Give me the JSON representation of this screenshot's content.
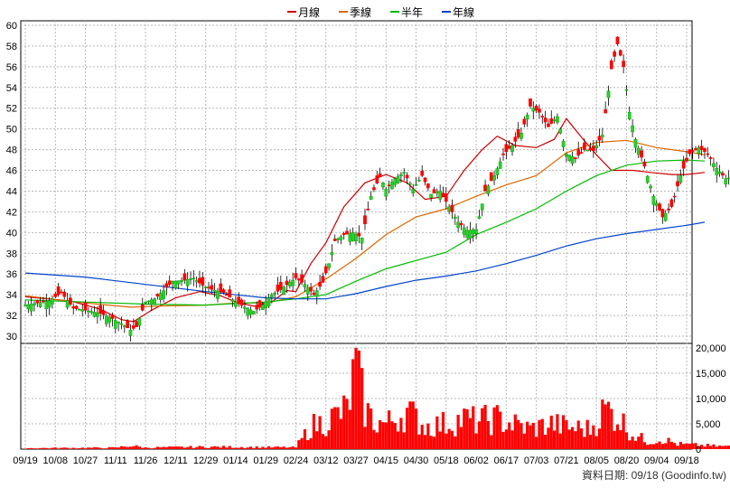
{
  "chart_data": {
    "type": "line",
    "title": "",
    "legend": {
      "placement": "top-center",
      "items": [
        {
          "name": "月線",
          "color": "#cc0000"
        },
        {
          "name": "季線",
          "color": "#dd6600"
        },
        {
          "name": "半年",
          "color": "#00bb00"
        },
        {
          "name": "年線",
          "color": "#0044cc"
        }
      ]
    },
    "grid": true,
    "price_axis": {
      "position": "left",
      "min": 30,
      "max": 60,
      "ticks": [
        30,
        32,
        34,
        36,
        38,
        40,
        42,
        44,
        46,
        48,
        50,
        52,
        54,
        56,
        58,
        60
      ]
    },
    "volume_axis": {
      "position": "right",
      "min": 0,
      "max": 20000,
      "ticks": [
        0,
        5000,
        10000,
        15000,
        20000
      ],
      "tick_labels": [
        "0",
        "5,000",
        "10,000",
        "15,000",
        "20,000"
      ]
    },
    "x_ticks": [
      "09/19",
      "10/08",
      "10/27",
      "11/11",
      "11/26",
      "12/11",
      "12/29",
      "01/14",
      "01/29",
      "02/24",
      "03/12",
      "03/27",
      "04/15",
      "04/30",
      "05/18",
      "06/02",
      "06/17",
      "07/03",
      "07/21",
      "08/05",
      "08/20",
      "09/04",
      "09/18"
    ],
    "series": [
      {
        "name": "月線",
        "color": "#cc0000",
        "values": [
          [
            0,
            33.8
          ],
          [
            1.5,
            33.4
          ],
          [
            2.5,
            32.6
          ],
          [
            3.2,
            31.6
          ],
          [
            3.6,
            31.4
          ],
          [
            4.2,
            32.5
          ],
          [
            5,
            33.7
          ],
          [
            5.8,
            34.3
          ],
          [
            6.5,
            33.9
          ],
          [
            7,
            33.3
          ],
          [
            7.6,
            32.9
          ],
          [
            8.2,
            33.3
          ],
          [
            8.7,
            34.4
          ],
          [
            9,
            34.3
          ],
          [
            9.5,
            37
          ],
          [
            10,
            39
          ],
          [
            10.6,
            42.5
          ],
          [
            11.3,
            44.8
          ],
          [
            12,
            45.6
          ],
          [
            12.7,
            44.8
          ],
          [
            13.3,
            43.2
          ],
          [
            14,
            43.5
          ],
          [
            14.6,
            46
          ],
          [
            15.2,
            48
          ],
          [
            15.7,
            49.3
          ],
          [
            16.3,
            48.4
          ],
          [
            17,
            48.2
          ],
          [
            17.6,
            49
          ],
          [
            18,
            51
          ],
          [
            18.5,
            49.2
          ],
          [
            19,
            47.5
          ],
          [
            19.5,
            46
          ],
          [
            20.2,
            46
          ],
          [
            20.8,
            45.8
          ],
          [
            21.5,
            45.6
          ],
          [
            22,
            45.6
          ],
          [
            22.6,
            45.8
          ]
        ]
      },
      {
        "name": "季線",
        "color": "#dd6600",
        "values": [
          [
            0,
            33.9
          ],
          [
            2,
            33.2
          ],
          [
            3.5,
            32.8
          ],
          [
            4.5,
            32.9
          ],
          [
            6,
            33
          ],
          [
            7,
            33.2
          ],
          [
            8,
            33.2
          ],
          [
            9,
            33.8
          ],
          [
            10,
            35.5
          ],
          [
            11,
            37.5
          ],
          [
            12,
            39.8
          ],
          [
            13,
            41.5
          ],
          [
            14,
            42.3
          ],
          [
            15,
            43.5
          ],
          [
            16,
            44.6
          ],
          [
            17,
            45.5
          ],
          [
            18,
            47.7
          ],
          [
            19,
            48.7
          ],
          [
            20,
            48.9
          ],
          [
            21,
            48.2
          ],
          [
            22,
            47.8
          ],
          [
            22.6,
            47.5
          ]
        ]
      },
      {
        "name": "半年",
        "color": "#00bb00",
        "values": [
          [
            0,
            33.5
          ],
          [
            2,
            33.3
          ],
          [
            4,
            33.1
          ],
          [
            6,
            33
          ],
          [
            8,
            33.3
          ],
          [
            9,
            33.6
          ],
          [
            10,
            34
          ],
          [
            11,
            35.3
          ],
          [
            12,
            36.5
          ],
          [
            13,
            37.3
          ],
          [
            14,
            38.1
          ],
          [
            15,
            39.8
          ],
          [
            16,
            41
          ],
          [
            17,
            42.3
          ],
          [
            18,
            44
          ],
          [
            19,
            45.5
          ],
          [
            20,
            46.5
          ],
          [
            21,
            46.9
          ],
          [
            22,
            47
          ],
          [
            22.6,
            46.9
          ]
        ]
      },
      {
        "name": "年線",
        "color": "#0044cc",
        "values": [
          [
            0,
            36.1
          ],
          [
            2,
            35.7
          ],
          [
            4,
            35
          ],
          [
            6,
            34.3
          ],
          [
            8,
            33.7
          ],
          [
            9,
            33.6
          ],
          [
            10,
            33.6
          ],
          [
            11,
            34.1
          ],
          [
            12,
            34.8
          ],
          [
            13,
            35.4
          ],
          [
            14,
            35.8
          ],
          [
            15,
            36.3
          ],
          [
            16,
            37
          ],
          [
            17,
            37.8
          ],
          [
            18,
            38.7
          ],
          [
            19,
            39.4
          ],
          [
            20,
            39.9
          ],
          [
            21,
            40.3
          ],
          [
            22,
            40.7
          ],
          [
            22.6,
            41
          ]
        ]
      }
    ],
    "candle_anchors": [
      [
        0,
        33
      ],
      [
        0.8,
        33.4
      ],
      [
        1.2,
        34.2
      ],
      [
        1.6,
        32.7
      ],
      [
        2,
        32.5
      ],
      [
        2.5,
        32.2
      ],
      [
        2.9,
        31.7
      ],
      [
        3.2,
        31.2
      ],
      [
        3.5,
        30.6
      ],
      [
        3.7,
        30.9
      ],
      [
        4,
        33.3
      ],
      [
        4.3,
        33.6
      ],
      [
        4.6,
        34.4
      ],
      [
        4.9,
        35.3
      ],
      [
        5.3,
        35.4
      ],
      [
        5.6,
        35.6
      ],
      [
        5.9,
        34.9
      ],
      [
        6.2,
        34.5
      ],
      [
        6.6,
        34.2
      ],
      [
        7,
        33.3
      ],
      [
        7.3,
        32.8
      ],
      [
        7.6,
        32.4
      ],
      [
        7.9,
        33
      ],
      [
        8.2,
        34
      ],
      [
        8.5,
        34.5
      ],
      [
        8.8,
        35.2
      ],
      [
        9,
        35.6
      ],
      [
        9.3,
        35
      ],
      [
        9.6,
        34
      ],
      [
        9.9,
        35.2
      ],
      [
        10.1,
        37
      ],
      [
        10.3,
        39.2
      ],
      [
        10.6,
        39.8
      ],
      [
        10.9,
        40
      ],
      [
        11.2,
        39.5
      ],
      [
        11.5,
        43.5
      ],
      [
        11.8,
        45.4
      ],
      [
        12,
        44.2
      ],
      [
        12.3,
        45.2
      ],
      [
        12.6,
        45.8
      ],
      [
        12.9,
        44.2
      ],
      [
        13.2,
        45.5
      ],
      [
        13.5,
        43.7
      ],
      [
        13.8,
        44
      ],
      [
        14.1,
        42.5
      ],
      [
        14.4,
        41
      ],
      [
        14.7,
        40.2
      ],
      [
        15,
        40.3
      ],
      [
        15.3,
        44
      ],
      [
        15.6,
        45.5
      ],
      [
        15.9,
        47.5
      ],
      [
        16.2,
        48.4
      ],
      [
        16.5,
        49.6
      ],
      [
        16.8,
        52.2
      ],
      [
        17.1,
        51.6
      ],
      [
        17.4,
        50.2
      ],
      [
        17.7,
        51.2
      ],
      [
        18,
        47.6
      ],
      [
        18.3,
        47.2
      ],
      [
        18.6,
        48
      ],
      [
        18.9,
        47.9
      ],
      [
        19.2,
        49.4
      ],
      [
        19.5,
        55.8
      ],
      [
        19.7,
        58.2
      ],
      [
        19.9,
        56
      ],
      [
        20.1,
        51.6
      ],
      [
        20.3,
        49
      ],
      [
        20.6,
        46.4
      ],
      [
        20.9,
        43.5
      ],
      [
        21.2,
        41.5
      ],
      [
        21.5,
        42.5
      ],
      [
        21.8,
        45.5
      ],
      [
        22.1,
        47.6
      ],
      [
        22.4,
        48.2
      ],
      [
        22.7,
        47.6
      ],
      [
        23,
        46.2
      ],
      [
        23.3,
        45.2
      ],
      [
        23.6,
        45.4
      ],
      [
        23.9,
        45.7
      ],
      [
        24.2,
        46.5
      ],
      [
        24.5,
        47
      ],
      [
        24.8,
        46
      ],
      [
        25.1,
        45.3
      ],
      [
        25.4,
        45.8
      ],
      [
        25.6,
        46
      ]
    ],
    "volume_anchors": [
      [
        0,
        200
      ],
      [
        3,
        280
      ],
      [
        3.5,
        700
      ],
      [
        4,
        300
      ],
      [
        6,
        450
      ],
      [
        9,
        350
      ],
      [
        9.5,
        4500
      ],
      [
        10,
        5500
      ],
      [
        10.7,
        7800
      ],
      [
        11,
        16000
      ],
      [
        11.3,
        8000
      ],
      [
        11.6,
        5500
      ],
      [
        12,
        5000
      ],
      [
        12.7,
        7500
      ],
      [
        13.3,
        4500
      ],
      [
        14,
        5000
      ],
      [
        14.6,
        6000
      ],
      [
        15,
        5500
      ],
      [
        15.7,
        6000
      ],
      [
        16.2,
        5000
      ],
      [
        16.8,
        4000
      ],
      [
        17.5,
        5000
      ],
      [
        18.2,
        4200
      ],
      [
        18.8,
        4000
      ],
      [
        19.3,
        8000
      ],
      [
        19.7,
        6500
      ],
      [
        20.2,
        3000
      ],
      [
        20.7,
        1500
      ],
      [
        21.2,
        2000
      ],
      [
        21.7,
        1000
      ],
      [
        22.3,
        800
      ],
      [
        23,
        600
      ],
      [
        24,
        450
      ],
      [
        25,
        400
      ]
    ]
  },
  "footer": {
    "label": "資料日期: 09/18  (Goodinfo.tw)"
  }
}
